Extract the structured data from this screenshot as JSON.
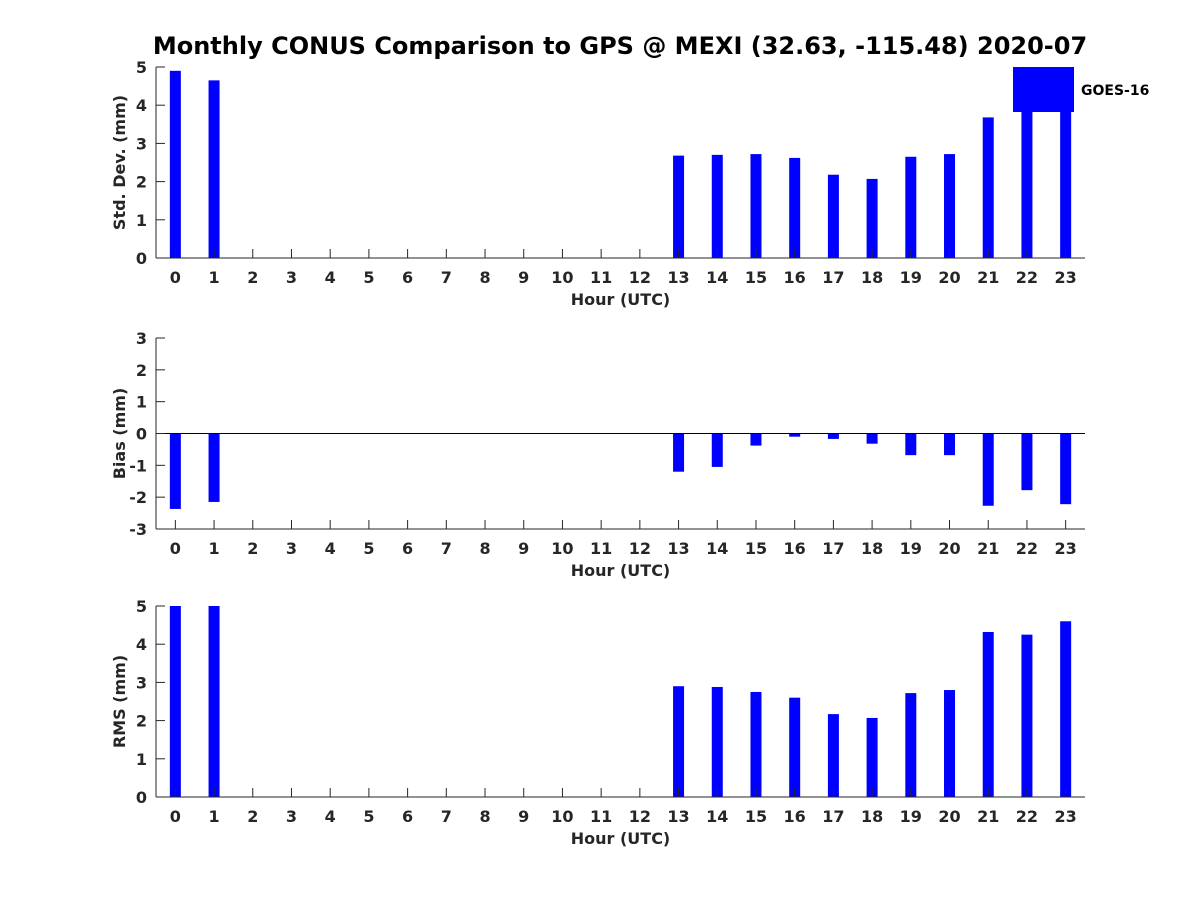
{
  "title": "Monthly CONUS Comparison to GPS @ MEXI (32.63, -115.48) 2020-07",
  "legend": {
    "label": "GOES-16",
    "placement": "top-right"
  },
  "colors": {
    "bar": "#0000ff",
    "axis": "#262626",
    "background": "#ffffff"
  },
  "chart_data": [
    {
      "type": "bar",
      "title": "Monthly CONUS Comparison to GPS @ MEXI (32.63, -115.48) 2020-07",
      "xlabel": "Hour (UTC)",
      "ylabel": "Std. Dev. (mm)",
      "categories": [
        "0",
        "1",
        "2",
        "3",
        "4",
        "5",
        "6",
        "7",
        "8",
        "9",
        "10",
        "11",
        "12",
        "13",
        "14",
        "15",
        "16",
        "17",
        "18",
        "19",
        "20",
        "21",
        "22",
        "23"
      ],
      "series": [
        {
          "name": "GOES-16",
          "values": [
            4.9,
            4.65,
            null,
            null,
            null,
            null,
            null,
            null,
            null,
            null,
            null,
            null,
            null,
            2.68,
            2.7,
            2.72,
            2.62,
            2.18,
            2.07,
            2.65,
            2.72,
            3.68,
            3.85,
            3.85
          ]
        }
      ],
      "ylim": [
        0,
        5
      ],
      "yticks": [
        0,
        1,
        2,
        3,
        4,
        5
      ],
      "legend": "top-right"
    },
    {
      "type": "bar",
      "xlabel": "Hour (UTC)",
      "ylabel": "Bias (mm)",
      "categories": [
        "0",
        "1",
        "2",
        "3",
        "4",
        "5",
        "6",
        "7",
        "8",
        "9",
        "10",
        "11",
        "12",
        "13",
        "14",
        "15",
        "16",
        "17",
        "18",
        "19",
        "20",
        "21",
        "22",
        "23"
      ],
      "series": [
        {
          "name": "GOES-16",
          "values": [
            -2.37,
            -2.15,
            null,
            null,
            null,
            null,
            null,
            null,
            null,
            null,
            null,
            null,
            null,
            -1.2,
            -1.05,
            -0.38,
            -0.1,
            -0.17,
            -0.32,
            -0.68,
            -0.68,
            -2.27,
            -1.78,
            -2.22
          ]
        }
      ],
      "ylim": [
        -3,
        3
      ],
      "yticks": [
        -3,
        -2,
        -1,
        0,
        1,
        2,
        3
      ],
      "zero_line": true
    },
    {
      "type": "bar",
      "xlabel": "Hour (UTC)",
      "ylabel": "RMS (mm)",
      "categories": [
        "0",
        "1",
        "2",
        "3",
        "4",
        "5",
        "6",
        "7",
        "8",
        "9",
        "10",
        "11",
        "12",
        "13",
        "14",
        "15",
        "16",
        "17",
        "18",
        "19",
        "20",
        "21",
        "22",
        "23"
      ],
      "series": [
        {
          "name": "GOES-16",
          "values": [
            5.0,
            5.0,
            null,
            null,
            null,
            null,
            null,
            null,
            null,
            null,
            null,
            null,
            null,
            2.9,
            2.88,
            2.75,
            2.6,
            2.17,
            2.07,
            2.72,
            2.8,
            4.32,
            4.25,
            4.6
          ]
        }
      ],
      "ylim": [
        0,
        5
      ],
      "yticks": [
        0,
        1,
        2,
        3,
        4,
        5
      ]
    }
  ]
}
